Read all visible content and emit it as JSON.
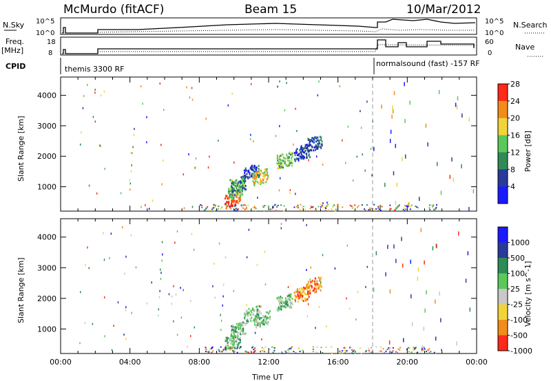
{
  "header": {
    "station": "McMurdo (fitACF)",
    "beam": "Beam 15",
    "date": "10/Mar/2012"
  },
  "top_panels": {
    "nsky_label": "N.Sky",
    "nsky_ticks": [
      "10^5",
      "10^0"
    ],
    "nsearch_ticks": [
      "10^5",
      "10^0"
    ],
    "nsearch_label": "N.Search",
    "freq_label": "Freq.",
    "freq_unit": "[MHz]",
    "freq_ticks": [
      "18",
      "8"
    ],
    "nave_ticks": [
      "60",
      "0"
    ],
    "nave_label": "Nave",
    "cpid_label": "CPID",
    "cpid_1": "themis 3300 RF",
    "cpid_2": "normalsound (fast) -157 RF"
  },
  "chart_data": [
    {
      "type": "heatmap",
      "name": "power",
      "ylabel": "Slant Range [km]",
      "y_ticks": [
        "1000",
        "2000",
        "3000",
        "4000"
      ],
      "ylim": [
        200,
        4600
      ],
      "xlim": [
        0,
        24
      ],
      "colorbar_label": "Power [dB]",
      "colorbar_ticks": [
        "4",
        "8",
        "12",
        "16",
        "20",
        "24",
        "28"
      ],
      "colors": [
        "#1a1aff",
        "#2a3a9a",
        "#2e8b57",
        "#5ac85a",
        "#f2d43a",
        "#f28c1a",
        "#ff2a1a"
      ],
      "clusters": [
        {
          "t": 9.9,
          "r": 600,
          "level": 6
        },
        {
          "t": 10.1,
          "r": 900,
          "level": 3
        },
        {
          "t": 10.2,
          "r": 1100,
          "level": 2
        },
        {
          "t": 11.0,
          "r": 1500,
          "level": 1
        },
        {
          "t": 11.5,
          "r": 1350,
          "level": 4
        },
        {
          "t": 12.9,
          "r": 1900,
          "level": 3
        },
        {
          "t": 13.9,
          "r": 2150,
          "level": 1
        },
        {
          "t": 14.6,
          "r": 2450,
          "level": 1
        }
      ]
    },
    {
      "type": "heatmap",
      "name": "velocity",
      "ylabel": "Slant Range [km]",
      "y_ticks": [
        "1000",
        "2000",
        "3000",
        "4000"
      ],
      "ylim": [
        200,
        4600
      ],
      "xlim": [
        0,
        24
      ],
      "x_ticks": [
        "00:00",
        "04:00",
        "08:00",
        "12:00",
        "16:00",
        "20:00",
        "00:00"
      ],
      "xlabel": "Time UT",
      "colorbar_label": "Velocity [m s^-1]",
      "colorbar_ticks": [
        "1000",
        "500",
        "100",
        "25",
        "-25",
        "-100",
        "-500",
        "-1000"
      ],
      "colors": [
        "#1a1aff",
        "#2a3a9a",
        "#2e8b57",
        "#5ac85a",
        "#c8c8c8",
        "#f2d43a",
        "#f28c1a",
        "#ff2a1a"
      ],
      "clusters": [
        {
          "t": 9.9,
          "r": 600,
          "level": 3
        },
        {
          "t": 10.2,
          "r": 1000,
          "level": 3
        },
        {
          "t": 11.0,
          "r": 1500,
          "level": 3
        },
        {
          "t": 11.6,
          "r": 1350,
          "level": 3
        },
        {
          "t": 12.9,
          "r": 1900,
          "level": 3
        },
        {
          "t": 13.9,
          "r": 2150,
          "level": 6
        },
        {
          "t": 14.6,
          "r": 2450,
          "level": 6
        }
      ]
    }
  ]
}
